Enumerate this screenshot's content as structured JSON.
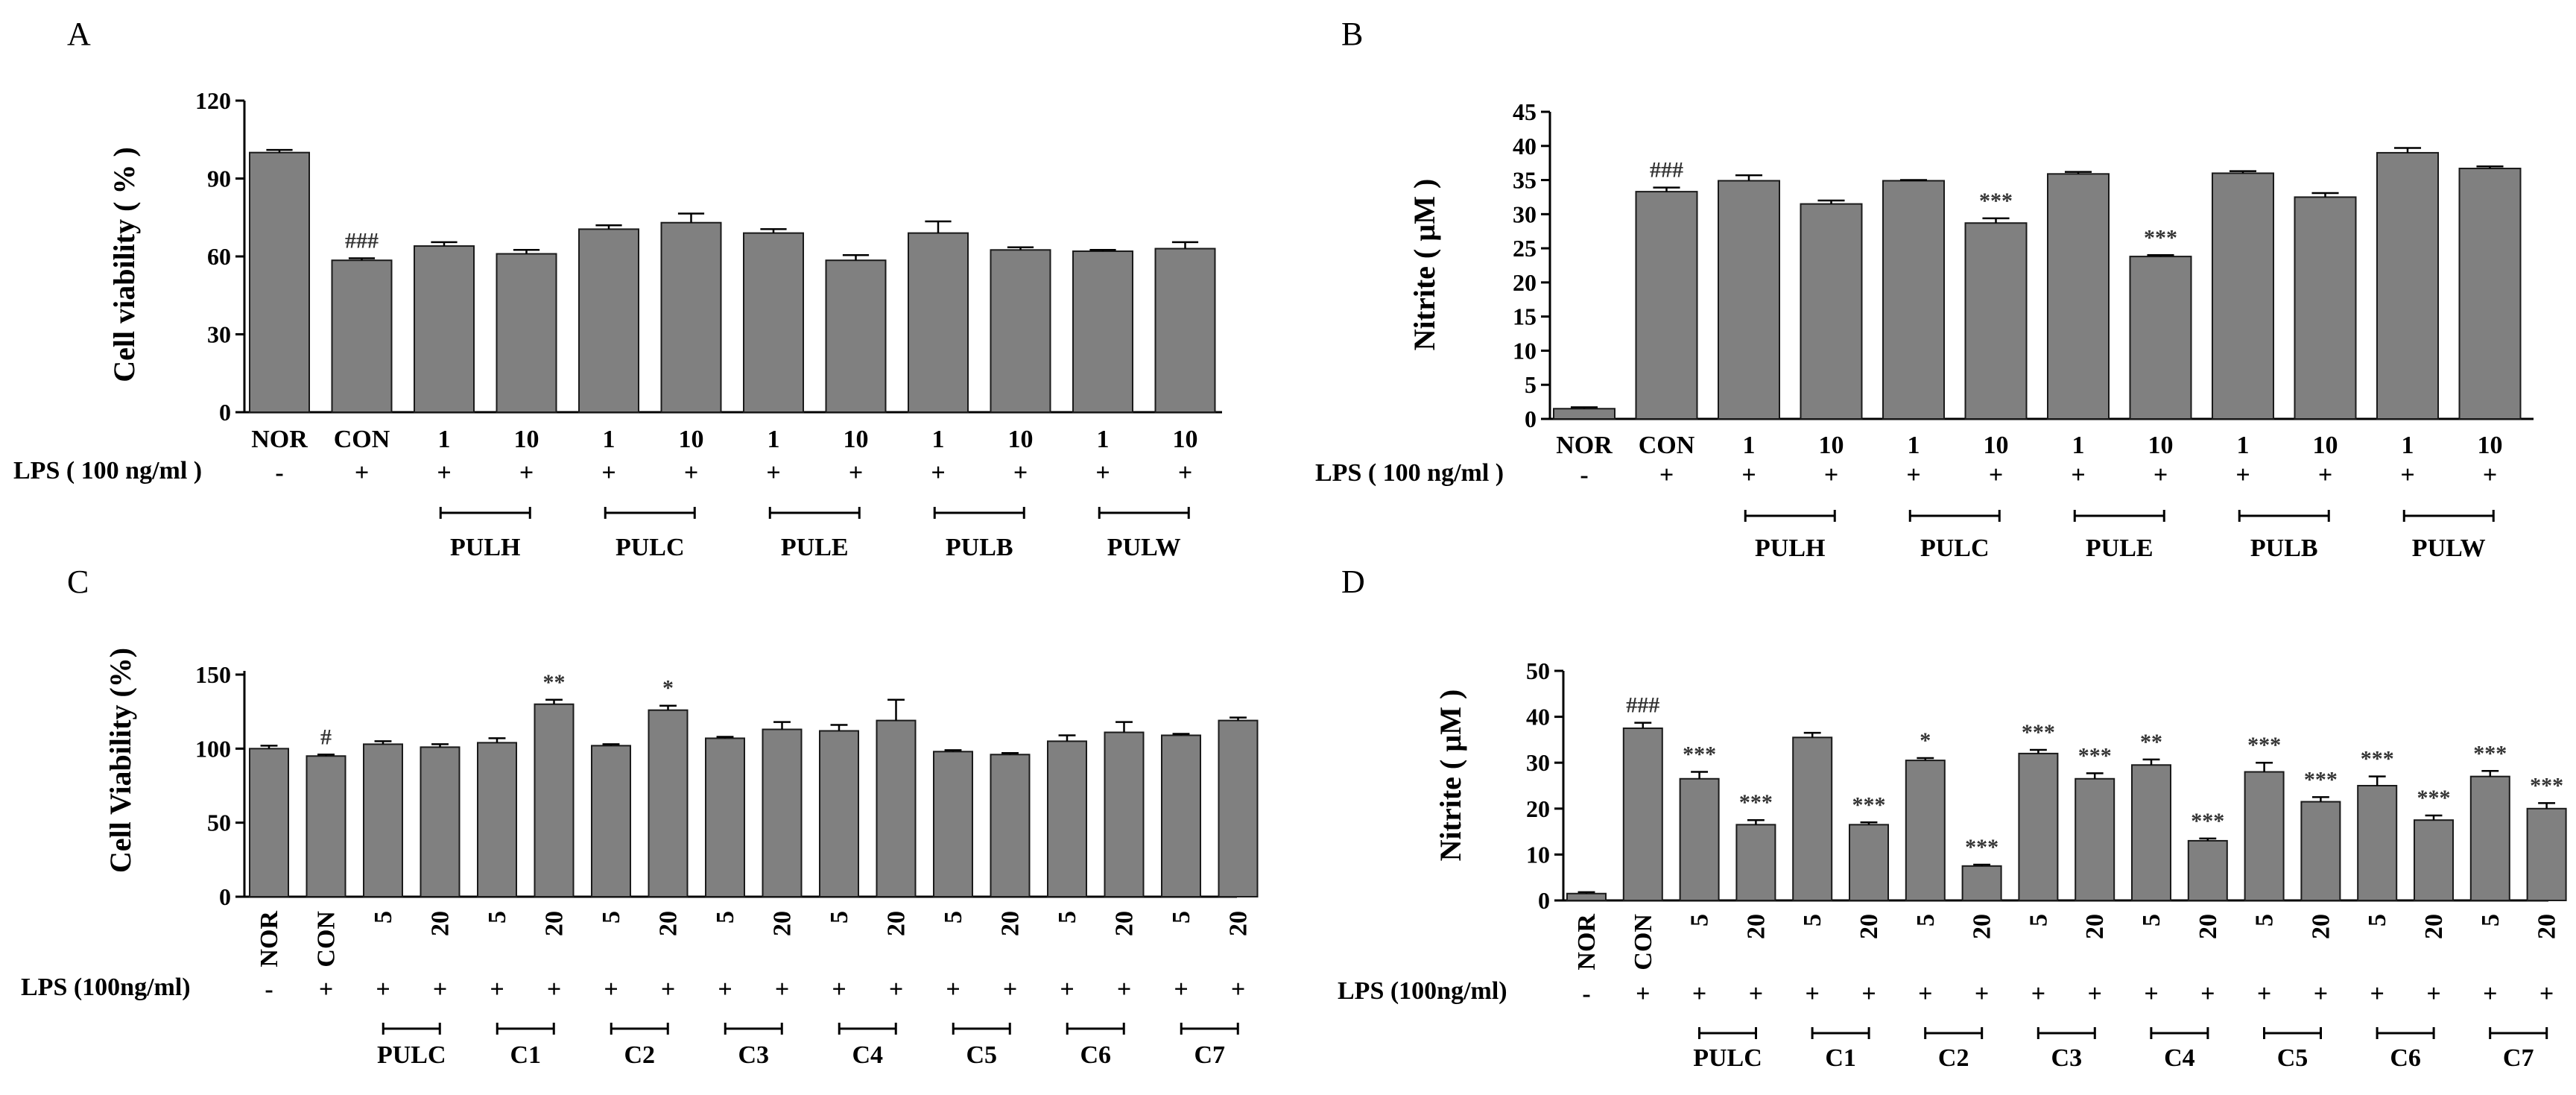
{
  "chart_data": [
    {
      "panel": "A",
      "type": "bar",
      "ylabel": "Cell viability ( % )",
      "ylim": [
        0,
        120
      ],
      "yticks": [
        0,
        30,
        60,
        90,
        120
      ],
      "categories": [
        "NOR",
        "CON",
        "1",
        "10",
        "1",
        "10",
        "1",
        "10",
        "1",
        "10",
        "1",
        "10"
      ],
      "values": [
        100,
        58.5,
        64,
        61,
        70.5,
        73,
        69,
        58.5,
        69,
        62.5,
        62,
        63
      ],
      "errors": [
        1,
        0.8,
        1.5,
        1.5,
        1.5,
        3.5,
        1.5,
        2,
        4.5,
        1,
        0.5,
        2.5
      ],
      "significance": [
        "",
        "###",
        "",
        "",
        "",
        "",
        "",
        "",
        "",
        "",
        "",
        ""
      ],
      "lps_label": "LPS ( 100 ng/ml )",
      "lps": [
        "-",
        "+",
        "+",
        "+",
        "+",
        "+",
        "+",
        "+",
        "+",
        "+",
        "+",
        "+"
      ],
      "groups": [
        "PULH",
        "PULC",
        "PULE",
        "PULB",
        "PULW"
      ],
      "rotated_labels": false
    },
    {
      "panel": "B",
      "type": "bar",
      "ylabel": "Nitrite ( µM )",
      "ylim": [
        0,
        45
      ],
      "yticks": [
        0,
        5,
        10,
        15,
        20,
        25,
        30,
        35,
        40,
        45
      ],
      "categories": [
        "NOR",
        "CON",
        "1",
        "10",
        "1",
        "10",
        "1",
        "10",
        "1",
        "10",
        "1",
        "10"
      ],
      "values": [
        1.5,
        33.3,
        34.9,
        31.5,
        34.9,
        28.7,
        35.9,
        23.8,
        36,
        32.5,
        39,
        36.7
      ],
      "errors": [
        0.2,
        0.6,
        0.8,
        0.5,
        0.1,
        0.7,
        0.3,
        0.2,
        0.3,
        0.6,
        0.7,
        0.3
      ],
      "significance": [
        "",
        "###",
        "",
        "",
        "",
        "***",
        "",
        "***",
        "",
        "",
        "",
        ""
      ],
      "lps_label": "LPS ( 100 ng/ml )",
      "lps": [
        "-",
        "+",
        "+",
        "+",
        "+",
        "+",
        "+",
        "+",
        "+",
        "+",
        "+",
        "+"
      ],
      "groups": [
        "PULH",
        "PULC",
        "PULE",
        "PULB",
        "PULW"
      ],
      "rotated_labels": false
    },
    {
      "panel": "C",
      "type": "bar",
      "ylabel": "Cell Viability (%)",
      "ylim": [
        0,
        150
      ],
      "yticks": [
        0,
        50,
        100,
        150
      ],
      "categories": [
        "NOR",
        "CON",
        "5",
        "20",
        "5",
        "20",
        "5",
        "20",
        "5",
        "20",
        "5",
        "20",
        "5",
        "20",
        "5",
        "20",
        "5",
        "20"
      ],
      "values": [
        100,
        95,
        103,
        101,
        104,
        130,
        102,
        126,
        107,
        113,
        112,
        119,
        98,
        96,
        105,
        111,
        109,
        119
      ],
      "errors": [
        2,
        1,
        2,
        2,
        3,
        3,
        1,
        3,
        1,
        5,
        4,
        14,
        1,
        1,
        4,
        7,
        1,
        2
      ],
      "significance": [
        "",
        "#",
        "",
        "",
        "",
        "**",
        "",
        "*",
        "",
        "",
        "",
        "",
        "",
        "",
        "",
        "",
        "",
        ""
      ],
      "lps_label": "LPS (100ng/ml)",
      "lps": [
        "-",
        "+",
        "+",
        "+",
        "+",
        "+",
        "+",
        "+",
        "+",
        "+",
        "+",
        "+",
        "+",
        "+",
        "+",
        "+",
        "+",
        "+"
      ],
      "groups": [
        "PULC",
        "C1",
        "C2",
        "C3",
        "C4",
        "C5",
        "C6",
        "C7"
      ],
      "rotated_labels": true
    },
    {
      "panel": "D",
      "type": "bar",
      "ylabel": "Nitrite ( µM )",
      "ylim": [
        0,
        50
      ],
      "yticks": [
        0,
        10,
        20,
        30,
        40,
        50
      ],
      "categories": [
        "NOR",
        "CON",
        "5",
        "20",
        "5",
        "20",
        "5",
        "20",
        "5",
        "20",
        "5",
        "20",
        "5",
        "20",
        "5",
        "20",
        "5",
        "20"
      ],
      "values": [
        1.5,
        37.5,
        26.5,
        16.5,
        35.5,
        16.5,
        30.5,
        7.5,
        32,
        26.5,
        29.5,
        13,
        28,
        21.5,
        25,
        17.5,
        27,
        20
      ],
      "errors": [
        0.3,
        1.2,
        1.5,
        1,
        1,
        0.5,
        0.5,
        0.3,
        0.8,
        1.2,
        1.2,
        0.5,
        2,
        1,
        2,
        1,
        1.2,
        1.2
      ],
      "significance": [
        "",
        "###",
        "***",
        "***",
        "",
        "***",
        "*",
        "***",
        "***",
        "***",
        "**",
        "***",
        "***",
        "***",
        "***",
        "***",
        "***",
        "***"
      ],
      "lps_label": "LPS (100ng/ml)",
      "lps": [
        "-",
        "+",
        "+",
        "+",
        "+",
        "+",
        "+",
        "+",
        "+",
        "+",
        "+",
        "+",
        "+",
        "+",
        "+",
        "+",
        "+",
        "+"
      ],
      "groups": [
        "PULC",
        "C1",
        "C2",
        "C3",
        "C4",
        "C5",
        "C6",
        "C7"
      ],
      "rotated_labels": true
    }
  ],
  "style": {
    "bar_fill": "#808080",
    "bar_stroke": "#1a1a1a",
    "axis_color": "#000000"
  }
}
